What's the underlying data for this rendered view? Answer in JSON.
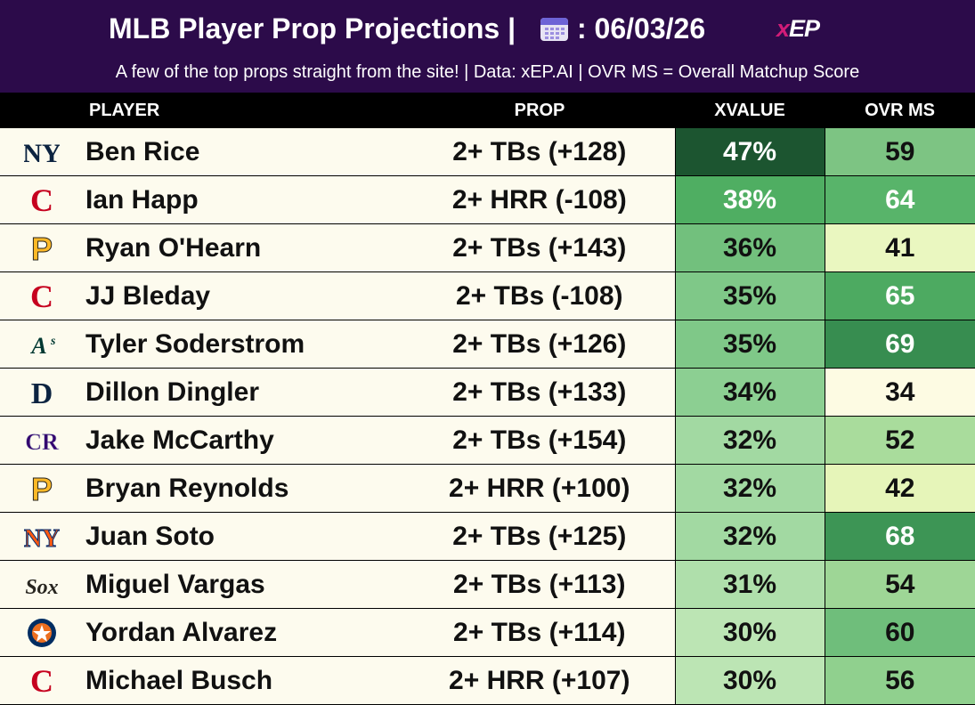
{
  "header": {
    "title": "MLB Player Prop Projections |",
    "calendar_icon": "calendar-icon",
    "date": ": 06/03/26",
    "brand": {
      "x": "x",
      "rest": "EP"
    },
    "subtitle": "A few of the top props straight from the site! | Data: xEP.AI | OVR MS = Overall Matchup Score"
  },
  "columns": {
    "player": "PLAYER",
    "prop": "PROP",
    "xvalue": "XVALUE",
    "ovr_ms": "OVR MS"
  },
  "rows": [
    {
      "team_icon": "yankees-logo-icon",
      "player": "Ben Rice",
      "prop": "2+ TBs (+128)",
      "xvalue": "47%",
      "ovr_ms": "59",
      "xvalue_color": "#1c5530",
      "ovr_color": "#7dc483"
    },
    {
      "team_icon": "reds-logo-icon",
      "player": "Ian Happ",
      "prop": "2+ HRR (-108)",
      "xvalue": "38%",
      "ovr_ms": "64",
      "xvalue_color": "#4fae62",
      "ovr_color": "#58b46a"
    },
    {
      "team_icon": "pirates-logo-icon",
      "player": "Ryan O'Hearn",
      "prop": "2+ TBs (+143)",
      "xvalue": "36%",
      "ovr_ms": "41",
      "xvalue_color": "#72c07d",
      "ovr_color": "#eaf7c0"
    },
    {
      "team_icon": "reds-logo-icon",
      "player": "JJ Bleday",
      "prop": "2+ TBs (-108)",
      "xvalue": "35%",
      "ovr_ms": "65",
      "xvalue_color": "#7fc888",
      "ovr_color": "#4daa61"
    },
    {
      "team_icon": "athletics-logo-icon",
      "player": "Tyler Soderstrom",
      "prop": "2+ TBs (+126)",
      "xvalue": "35%",
      "ovr_ms": "69",
      "xvalue_color": "#7fc888",
      "ovr_color": "#378d50"
    },
    {
      "team_icon": "tigers-logo-icon",
      "player": "Dillon Dingler",
      "prop": "2+ TBs (+133)",
      "xvalue": "34%",
      "ovr_ms": "34",
      "xvalue_color": "#8ccf92",
      "ovr_color": "#fdfbe3"
    },
    {
      "team_icon": "rockies-logo-icon",
      "player": "Jake McCarthy",
      "prop": "2+ TBs (+154)",
      "xvalue": "32%",
      "ovr_ms": "52",
      "xvalue_color": "#a2d9a2",
      "ovr_color": "#a9dc9c"
    },
    {
      "team_icon": "pirates-logo-icon",
      "player": "Bryan Reynolds",
      "prop": "2+ HRR (+100)",
      "xvalue": "32%",
      "ovr_ms": "42",
      "xvalue_color": "#a2d9a2",
      "ovr_color": "#e6f5b9"
    },
    {
      "team_icon": "mets-logo-icon",
      "player": "Juan Soto",
      "prop": "2+ TBs (+125)",
      "xvalue": "32%",
      "ovr_ms": "68",
      "xvalue_color": "#a2d9a2",
      "ovr_color": "#3d9555"
    },
    {
      "team_icon": "white-sox-logo-icon",
      "player": "Miguel Vargas",
      "prop": "2+ TBs (+113)",
      "xvalue": "31%",
      "ovr_ms": "54",
      "xvalue_color": "#afdfab",
      "ovr_color": "#9ed696"
    },
    {
      "team_icon": "astros-logo-icon",
      "player": "Yordan Alvarez",
      "prop": "2+ TBs (+114)",
      "xvalue": "30%",
      "ovr_ms": "60",
      "xvalue_color": "#bce5b4",
      "ovr_color": "#6fbe7b"
    },
    {
      "team_icon": "reds-logo-icon",
      "player": "Michael Busch",
      "prop": "2+ HRR (+107)",
      "xvalue": "30%",
      "ovr_ms": "56",
      "xvalue_color": "#bce5b4",
      "ovr_color": "#90d08e"
    }
  ]
}
